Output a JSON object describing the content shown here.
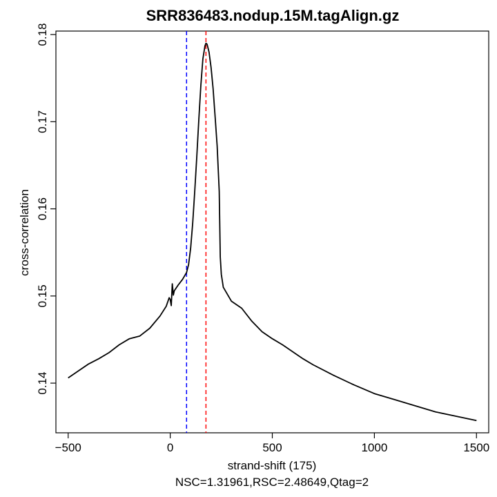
{
  "chart_data": {
    "type": "line",
    "title": "SRR836483.nodup.15M.tagAlign.gz",
    "xlabel": "strand-shift (175)",
    "ylabel": "cross-correlation",
    "subtitle": "NSC=1.31961,RSC=2.48649,Qtag=2",
    "xlim": [
      -560,
      1560
    ],
    "ylim": [
      0.1343,
      0.1804
    ],
    "x_ticks": [
      -500,
      0,
      500,
      1000,
      1500
    ],
    "x_tick_labels": [
      "−500",
      "0",
      "500",
      "1000",
      "1500"
    ],
    "y_ticks": [
      0.14,
      0.15,
      0.16,
      0.17,
      0.18
    ],
    "y_tick_labels": [
      "0.14",
      "0.15",
      "0.16",
      "0.17",
      "0.18"
    ],
    "vlines": [
      {
        "name": "min-shift",
        "x": 80,
        "color": "#0000ff",
        "style": "dashed"
      },
      {
        "name": "fragment-length",
        "x": 175,
        "color": "#ff0000",
        "style": "dashed"
      }
    ],
    "series": [
      {
        "name": "cross-correlation",
        "color": "#000000",
        "x": [
          -500,
          -450,
          -400,
          -350,
          -300,
          -250,
          -200,
          -150,
          -100,
          -50,
          -20,
          -5,
          0,
          5,
          10,
          15,
          20,
          40,
          60,
          80,
          90,
          100,
          110,
          120,
          130,
          140,
          150,
          160,
          170,
          175,
          180,
          190,
          200,
          210,
          220,
          230,
          240,
          245,
          250,
          260,
          280,
          300,
          350,
          400,
          450,
          500,
          550,
          600,
          650,
          700,
          800,
          900,
          1000,
          1100,
          1200,
          1300,
          1400,
          1500
        ],
        "y": [
          0.1406,
          0.1414,
          0.1422,
          0.1428,
          0.1435,
          0.1444,
          0.1451,
          0.1454,
          0.1463,
          0.1477,
          0.1488,
          0.1498,
          0.1496,
          0.1489,
          0.1514,
          0.1501,
          0.1506,
          0.1513,
          0.1519,
          0.1527,
          0.1536,
          0.1555,
          0.1584,
          0.162,
          0.166,
          0.1702,
          0.1742,
          0.1772,
          0.1787,
          0.179,
          0.1789,
          0.178,
          0.1762,
          0.1738,
          0.1705,
          0.1672,
          0.162,
          0.1545,
          0.1525,
          0.151,
          0.1502,
          0.1494,
          0.1486,
          0.1471,
          0.1459,
          0.1451,
          0.1444,
          0.1436,
          0.1428,
          0.1421,
          0.1409,
          0.1398,
          0.1388,
          0.1381,
          0.1374,
          0.1367,
          0.1362,
          0.1357
        ]
      }
    ]
  }
}
